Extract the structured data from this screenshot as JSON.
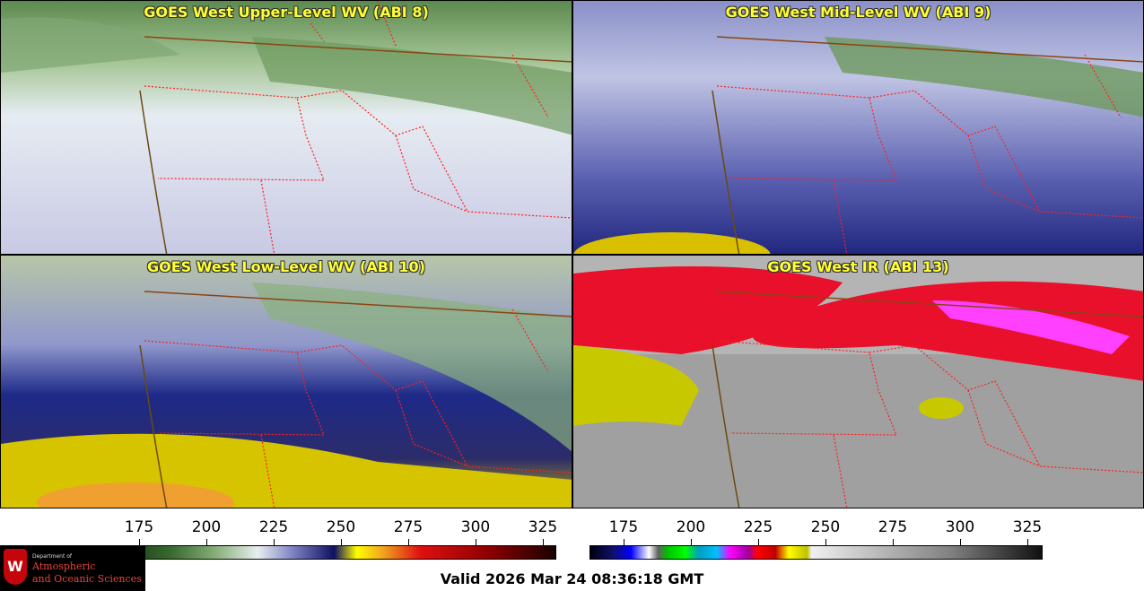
{
  "panels": [
    {
      "title": "GOES West Upper-Level WV (ABI 8)"
    },
    {
      "title": "GOES West Mid-Level WV (ABI 9)"
    },
    {
      "title": "GOES West Low-Level WV (ABI 10)"
    },
    {
      "title": "GOES West IR (ABI 13)"
    }
  ],
  "colorbar_left": {
    "ticks": [
      "175",
      "200",
      "225",
      "250",
      "275",
      "300",
      "325"
    ]
  },
  "colorbar_right": {
    "ticks": [
      "175",
      "200",
      "225",
      "250",
      "275",
      "300",
      "325"
    ]
  },
  "valid_text": "Valid 2026 Mar 24 08:36:18 GMT",
  "logo": {
    "dept": "Department of",
    "line1": "Atmospheric",
    "line2": "and Oceanic Sciences",
    "letter": "W"
  },
  "colors": {
    "title": "#ffff33",
    "border": "#8b0000",
    "state_lines": "#ff2020",
    "coast": "#6b4a10"
  }
}
